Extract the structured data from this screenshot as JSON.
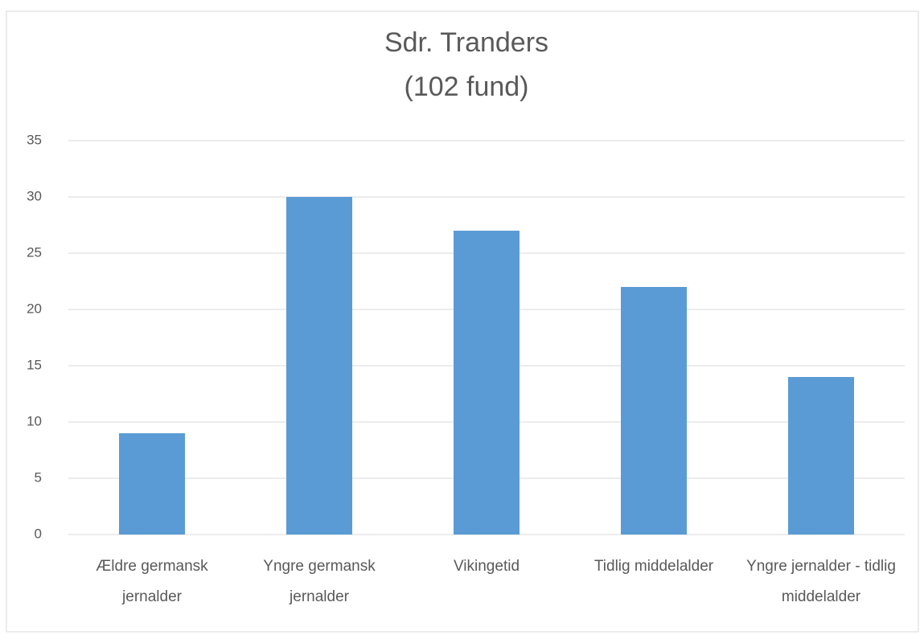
{
  "chart_data": {
    "type": "bar",
    "title": "Sdr. Tranders",
    "subtitle": "(102 fund)",
    "categories": [
      "Ældre germansk jernalder",
      "Yngre germansk jernalder",
      "Vikingetid",
      "Tidlig middelalder",
      "Yngre jernalder - tidlig middelalder"
    ],
    "values": [
      9,
      30,
      27,
      22,
      14
    ],
    "color": "#5b9bd5",
    "ylim": [
      0,
      35
    ],
    "yticks": [
      0,
      5,
      10,
      15,
      20,
      25,
      30,
      35
    ],
    "grid": true
  }
}
